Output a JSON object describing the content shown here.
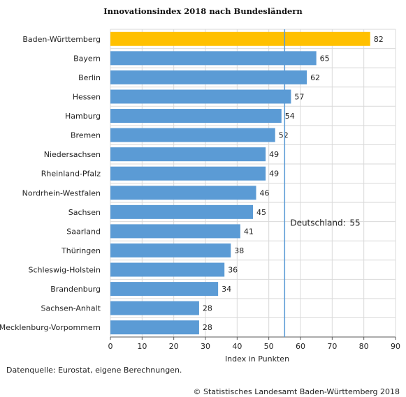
{
  "chart_data": {
    "type": "bar",
    "orientation": "horizontal",
    "title": "Innovationsindex 2018 nach Bundesländern",
    "xlabel": "Index in Punkten",
    "ylabel": "",
    "xlim": [
      0,
      90
    ],
    "xticks": [
      0,
      10,
      20,
      30,
      40,
      50,
      60,
      70,
      80,
      90
    ],
    "grid": true,
    "categories": [
      "Baden-Württemberg",
      "Bayern",
      "Berlin",
      "Hessen",
      "Hamburg",
      "Bremen",
      "Niedersachsen",
      "Rheinland-Pfalz",
      "Nordrhein-Westfalen",
      "Sachsen",
      "Saarland",
      "Thüringen",
      "Schleswig-Holstein",
      "Brandenburg",
      "Sachsen-Anhalt",
      "Mecklenburg-Vorpommern"
    ],
    "values": [
      82,
      65,
      62,
      57,
      54,
      52,
      49,
      49,
      46,
      45,
      41,
      38,
      36,
      34,
      28,
      28
    ],
    "highlight_category": "Baden-Württemberg",
    "colors": {
      "bar": "#5b9bd5",
      "highlight": "#ffc000",
      "reference_line": "#5b9bd5",
      "grid": "#d9d9d9"
    },
    "reference_line": {
      "label": "Deutschland:",
      "value": 55
    }
  },
  "source": "Datenquelle: Eurostat, eigene Berechnungen.",
  "copyright": "© Statistisches Landesamt Baden-Württemberg 2018"
}
